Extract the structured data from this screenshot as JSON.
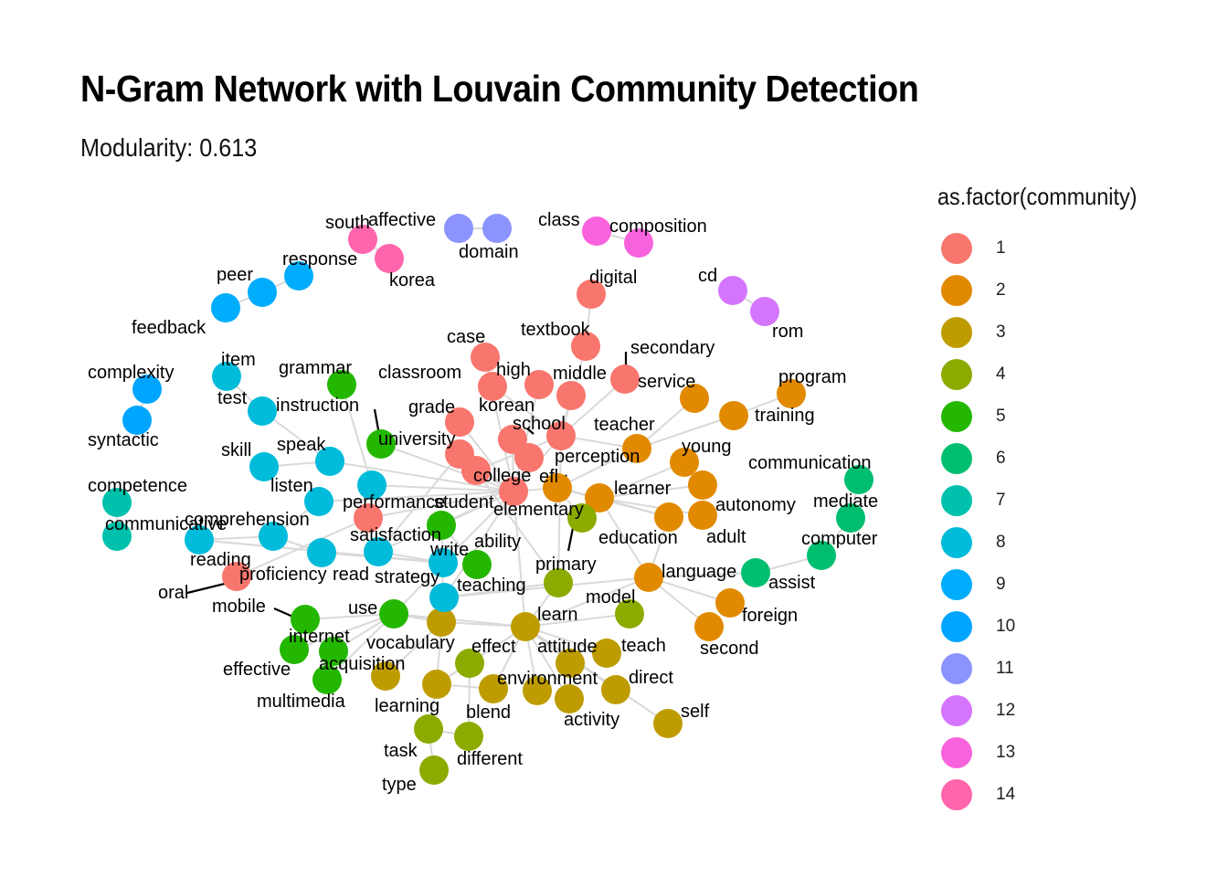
{
  "title": "N-Gram Network with Louvain Community Detection",
  "subtitle": "Modularity: 0.613",
  "legend": {
    "title": "as.factor(community)",
    "items": [
      {
        "label": "1",
        "color": "#F8766D"
      },
      {
        "label": "2",
        "color": "#E18A00"
      },
      {
        "label": "3",
        "color": "#BE9C00"
      },
      {
        "label": "4",
        "color": "#8CAB00"
      },
      {
        "label": "5",
        "color": "#24B700"
      },
      {
        "label": "6",
        "color": "#00BE70"
      },
      {
        "label": "7",
        "color": "#00C1AB"
      },
      {
        "label": "8",
        "color": "#00BBDA"
      },
      {
        "label": "9",
        "color": "#00ACFC"
      },
      {
        "label": "10",
        "color": "#00A5FF"
      },
      {
        "label": "11",
        "color": "#8B93FF"
      },
      {
        "label": "12",
        "color": "#D575FE"
      },
      {
        "label": "13",
        "color": "#F962DD"
      },
      {
        "label": "14",
        "color": "#FF65AC"
      }
    ]
  },
  "chart_data": {
    "type": "network",
    "nodes": [
      {
        "id": "south",
        "community": 14
      },
      {
        "id": "korea",
        "community": 14
      },
      {
        "id": "affective",
        "community": 11
      },
      {
        "id": "domain",
        "community": 11
      },
      {
        "id": "class",
        "community": 13
      },
      {
        "id": "composition",
        "community": 13
      },
      {
        "id": "cd",
        "community": 12
      },
      {
        "id": "rom",
        "community": 12
      },
      {
        "id": "response",
        "community": 9
      },
      {
        "id": "peer",
        "community": 9
      },
      {
        "id": "feedback",
        "community": 9
      },
      {
        "id": "complexity",
        "community": 10
      },
      {
        "id": "syntactic",
        "community": 10
      },
      {
        "id": "competence",
        "community": 7
      },
      {
        "id": "communicative",
        "community": 7
      },
      {
        "id": "digital",
        "community": 1
      },
      {
        "id": "textbook",
        "community": 1
      },
      {
        "id": "case",
        "community": 1
      },
      {
        "id": "high",
        "community": 1
      },
      {
        "id": "middle",
        "community": 1
      },
      {
        "id": "secondary",
        "community": 1
      },
      {
        "id": "classroom",
        "community": 1
      },
      {
        "id": "grade",
        "community": 1
      },
      {
        "id": "korean",
        "community": 1
      },
      {
        "id": "school",
        "community": 1
      },
      {
        "id": "college",
        "community": 1
      },
      {
        "id": "student",
        "community": 1
      },
      {
        "id": "elementary",
        "community": 1
      },
      {
        "id": "performance",
        "community": 1
      },
      {
        "id": "proficiency",
        "community": 1
      },
      {
        "id": "oral",
        "community": 1
      },
      {
        "id": "service",
        "community": 2
      },
      {
        "id": "program",
        "community": 2
      },
      {
        "id": "training",
        "community": 2
      },
      {
        "id": "teacher",
        "community": 2
      },
      {
        "id": "young",
        "community": 2
      },
      {
        "id": "efl",
        "community": 2
      },
      {
        "id": "learner",
        "community": 2
      },
      {
        "id": "autonomy",
        "community": 2
      },
      {
        "id": "adult",
        "community": 2
      },
      {
        "id": "education",
        "community": 2
      },
      {
        "id": "language",
        "community": 2
      },
      {
        "id": "foreign",
        "community": 2
      },
      {
        "id": "second",
        "community": 2
      },
      {
        "id": "learn",
        "community": 3
      },
      {
        "id": "vocabulary",
        "community": 3
      },
      {
        "id": "attitude",
        "community": 3
      },
      {
        "id": "teach",
        "community": 3
      },
      {
        "id": "environment",
        "community": 3
      },
      {
        "id": "direct",
        "community": 3
      },
      {
        "id": "activity",
        "community": 3
      },
      {
        "id": "self",
        "community": 3
      },
      {
        "id": "learning",
        "community": 3
      },
      {
        "id": "blend",
        "community": 3
      },
      {
        "id": "acquisition",
        "community": 3
      },
      {
        "id": "perception",
        "community": 4
      },
      {
        "id": "primary",
        "community": 4
      },
      {
        "id": "model",
        "community": 4
      },
      {
        "id": "effect",
        "community": 4
      },
      {
        "id": "task",
        "community": 4
      },
      {
        "id": "different",
        "community": 4
      },
      {
        "id": "type",
        "community": 4
      },
      {
        "id": "grammar",
        "community": 5
      },
      {
        "id": "university",
        "community": 5
      },
      {
        "id": "write",
        "community": 5
      },
      {
        "id": "ability",
        "community": 5
      },
      {
        "id": "use",
        "community": 5
      },
      {
        "id": "mobile",
        "community": 5
      },
      {
        "id": "internet",
        "community": 5
      },
      {
        "id": "effective",
        "community": 5
      },
      {
        "id": "multimedia",
        "community": 5
      },
      {
        "id": "communication",
        "community": 6
      },
      {
        "id": "mediate",
        "community": 6
      },
      {
        "id": "computer",
        "community": 6
      },
      {
        "id": "assist",
        "community": 6
      },
      {
        "id": "item",
        "community": 8
      },
      {
        "id": "test",
        "community": 8
      },
      {
        "id": "instruction",
        "community": 8
      },
      {
        "id": "skill",
        "community": 8
      },
      {
        "id": "speak",
        "community": 8
      },
      {
        "id": "listen",
        "community": 8
      },
      {
        "id": "comprehension",
        "community": 8
      },
      {
        "id": "reading",
        "community": 8
      },
      {
        "id": "read",
        "community": 8
      },
      {
        "id": "satisfaction",
        "community": 8
      },
      {
        "id": "strategy",
        "community": 8
      },
      {
        "id": "teaching",
        "community": 8
      }
    ]
  }
}
